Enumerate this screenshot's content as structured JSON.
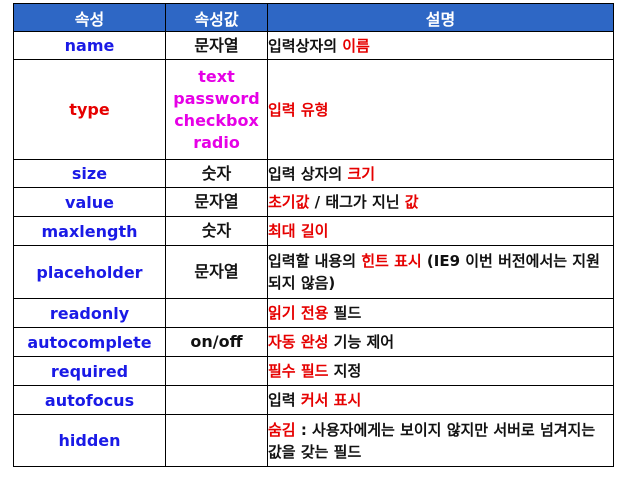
{
  "headers": [
    "속성",
    "속성값",
    "설명"
  ],
  "rows": [
    {
      "attr": "name",
      "value": "문자열",
      "desc": [
        {
          "t": "입력상자의 "
        },
        {
          "t": "이름",
          "hl": true
        }
      ]
    },
    {
      "attr": "type",
      "values": [
        "text",
        "password",
        "checkbox",
        "radio"
      ],
      "desc": [
        {
          "t": "입력 유형",
          "hl": true
        }
      ]
    },
    {
      "attr": "size",
      "value": "숫자",
      "desc": [
        {
          "t": "입력 상자의 "
        },
        {
          "t": "크기",
          "hl": true
        }
      ]
    },
    {
      "attr": "value",
      "value": "문자열",
      "desc": [
        {
          "t": "초기값",
          "hl": true
        },
        {
          "t": " / 태그가 지닌 "
        },
        {
          "t": "값",
          "hl": true
        }
      ]
    },
    {
      "attr": "maxlength",
      "value": "숫자",
      "desc": [
        {
          "t": "최대 길이",
          "hl": true
        }
      ]
    },
    {
      "attr": "placeholder",
      "value": "문자열",
      "desc": [
        {
          "t": "입력할 내용의 "
        },
        {
          "t": "힌트 표시",
          "hl": true
        },
        {
          "t": " (IE9 이번 버전에서는 지원되지 않음)"
        }
      ]
    },
    {
      "attr": "readonly",
      "value": "",
      "desc": [
        {
          "t": "읽기 전용",
          "hl": true
        },
        {
          "t": " 필드"
        }
      ]
    },
    {
      "attr": "autocomplete",
      "value": "on/off",
      "desc": [
        {
          "t": "자동 완성",
          "hl": true
        },
        {
          "t": " 기능 제어"
        }
      ]
    },
    {
      "attr": "required",
      "value": "",
      "desc": [
        {
          "t": "필수 필드",
          "hl": true
        },
        {
          "t": " 지정"
        }
      ]
    },
    {
      "attr": "autofocus",
      "value": "",
      "desc": [
        {
          "t": "입력 "
        },
        {
          "t": "커서 표시",
          "hl": true
        }
      ]
    },
    {
      "attr": "hidden",
      "value": "",
      "desc": [
        {
          "t": "숨김",
          "hl": true
        },
        {
          "t": " : 사용자에게는 보이지 않지만 서버로 넘겨지는 값을 갖는 필드"
        }
      ]
    }
  ],
  "colors": {
    "header_bg": "#2E67C5",
    "attr": "#1A1AE6",
    "highlight": "#E60000",
    "magenta": "#E600E6"
  }
}
